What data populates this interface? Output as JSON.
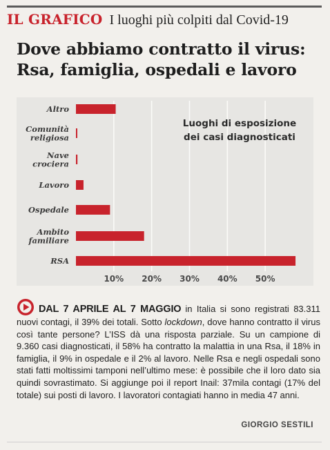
{
  "header": {
    "tag": "IL GRAFICO",
    "kicker": "I luoghi più colpiti dal Covid-19"
  },
  "headline": {
    "line1": "Dove abbiamo contratto il virus:",
    "line2": "Rsa, famiglia, ospedali e lavoro"
  },
  "chart_data": {
    "type": "bar",
    "orientation": "horizontal",
    "title_lines": [
      "Luoghi di esposizione",
      "dei casi diagnosticati"
    ],
    "categories": [
      [
        "Altro"
      ],
      [
        "Comunità",
        "religiosa"
      ],
      [
        "Nave",
        "crociera"
      ],
      [
        "Lavoro"
      ],
      [
        "Ospedale"
      ],
      [
        "Ambito",
        "familiare"
      ],
      [
        "RSA"
      ]
    ],
    "values": [
      10.5,
      0.3,
      0.4,
      2,
      9,
      18,
      58
    ],
    "tick_values": [
      10,
      20,
      30,
      40,
      50
    ],
    "tick_labels": [
      "10%",
      "20%",
      "30%",
      "40%",
      "50%"
    ],
    "xlim": [
      0,
      60
    ],
    "grid": true,
    "colors": {
      "bar": "#c8232c",
      "grid": "#fbfbf8",
      "panel": "#e7e6e3",
      "label": "#3a3a3a"
    }
  },
  "article": {
    "lead": "DAL 7 APRILE AL 7 MAGGIO",
    "text_1": "in Italia si sono registrati 83.311 nuovi contagi, il 39% dei totali. Sotto ",
    "text_italic": "lockdown",
    "text_2": ", dove hanno contratto il virus così tante persone? L’ISS dà una risposta parziale. Su un campione di 9.360 casi diagnosticati, il 58% ha contratto la malattia in una Rsa, il 18% in famiglia, il 9% in ospedale e il 2% al lavoro. Nelle Rsa e negli ospedali sono stati fatti moltissimi tamponi nell’ultimo mese: è possibile che il loro dato sia quindi sovrastimato. Si aggiunge poi il report Inail: 37mila contagi (17% del totale) sui posti di lavoro. I lavoratori contagiati hanno in media 47 anni.",
    "byline": "GIORGIO SESTILI"
  }
}
